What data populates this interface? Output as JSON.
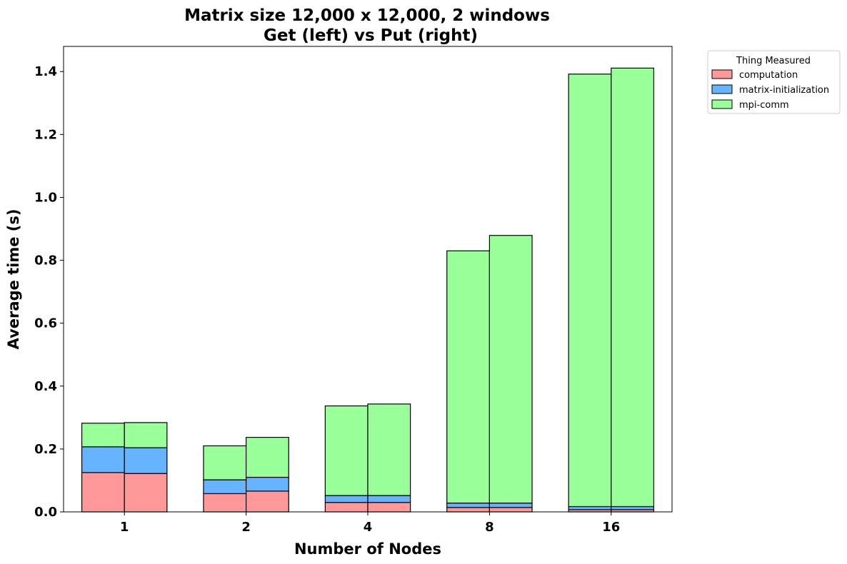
{
  "chart_data": {
    "type": "bar",
    "stacked": true,
    "grouped": true,
    "title": "Matrix size 12,000 x 12,000, 2 windows",
    "subtitle": "Get (left) vs Put (right)",
    "xlabel": "Number of Nodes",
    "ylabel": "Average time (s)",
    "categories": [
      "1",
      "2",
      "4",
      "8",
      "16"
    ],
    "groups": [
      "Get",
      "Put"
    ],
    "ylim": [
      0,
      1.48
    ],
    "yticks": [
      0.0,
      0.2,
      0.4,
      0.6,
      0.8,
      1.0,
      1.2,
      1.4
    ],
    "ytick_labels": [
      "0.0",
      "0.2",
      "0.4",
      "0.6",
      "0.8",
      "1.0",
      "1.2",
      "1.4"
    ],
    "grid": false,
    "legend": {
      "title": "Thing Measured",
      "placement": "outside-top-right"
    },
    "series": [
      {
        "name": "computation",
        "color": "#ff9999",
        "get": [
          0.125,
          0.058,
          0.03,
          0.014,
          0.007
        ],
        "put": [
          0.122,
          0.066,
          0.03,
          0.014,
          0.007
        ]
      },
      {
        "name": "matrix-initialization",
        "color": "#66b3ff",
        "get": [
          0.082,
          0.044,
          0.022,
          0.014,
          0.01
        ],
        "put": [
          0.082,
          0.044,
          0.022,
          0.014,
          0.01
        ]
      },
      {
        "name": "mpi-comm",
        "color": "#99ff99",
        "get": [
          0.075,
          0.108,
          0.285,
          0.802,
          1.375
        ],
        "put": [
          0.08,
          0.127,
          0.291,
          0.851,
          1.394
        ]
      }
    ]
  }
}
